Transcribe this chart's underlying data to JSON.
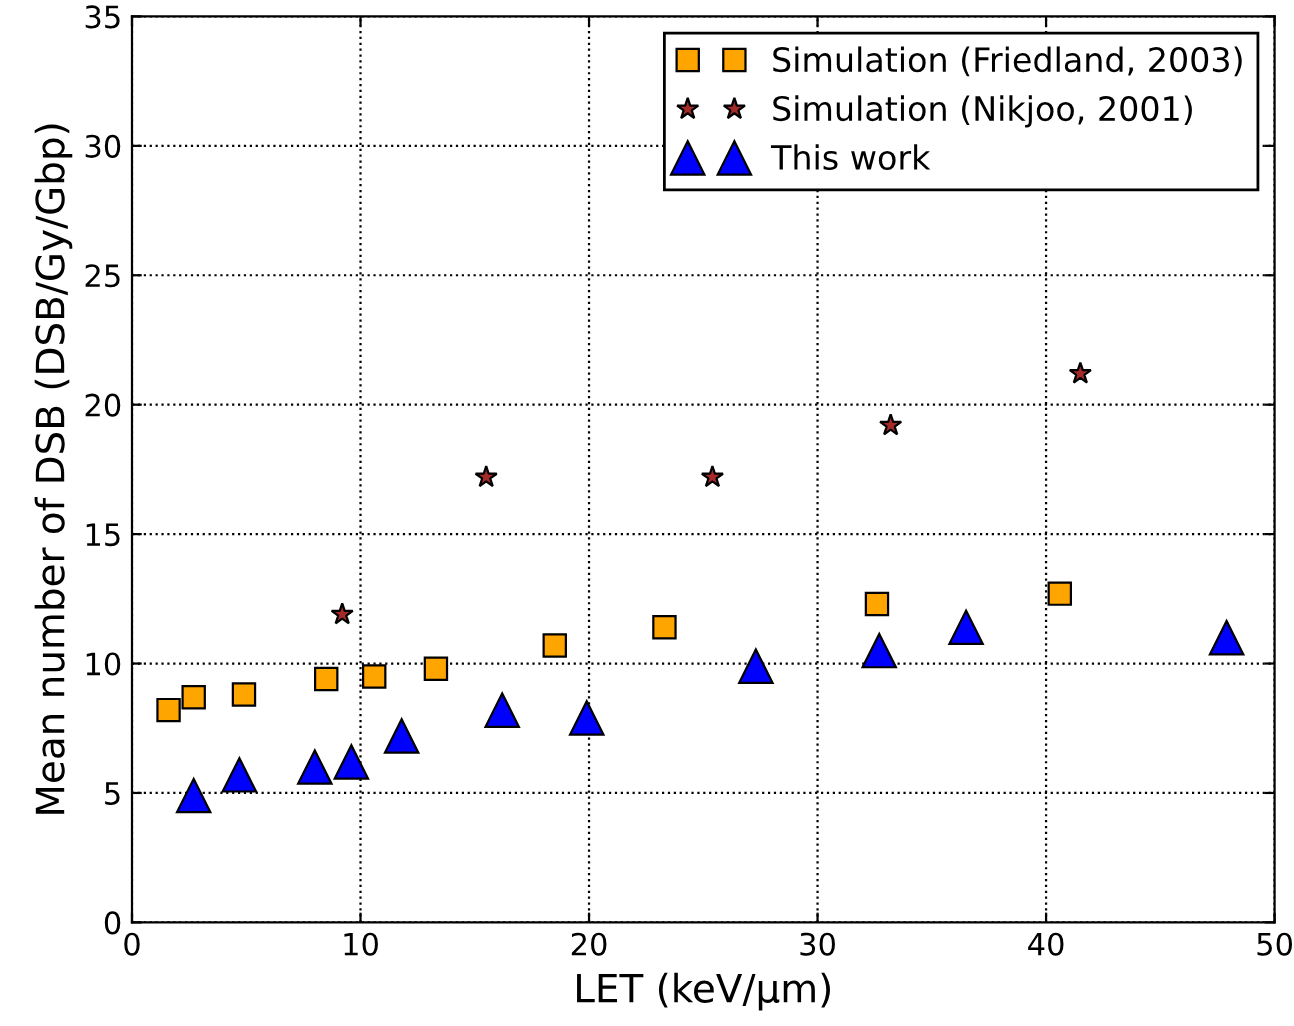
{
  "chart_data": {
    "type": "scatter",
    "xlabel": "LET (keV/μm)",
    "ylabel": "Mean number of DSB (DSB/Gy/Gbp)",
    "xlim": [
      0,
      50
    ],
    "ylim": [
      0,
      35
    ],
    "xticks": [
      0,
      10,
      20,
      30,
      40,
      50
    ],
    "yticks": [
      0,
      5,
      10,
      15,
      20,
      25,
      30,
      35
    ],
    "grid": true,
    "legend": "top right",
    "series": [
      {
        "name": "Simulation (Friedland, 2003)",
        "color": "#ffa500",
        "marker": "square",
        "x": [
          1.6,
          2.7,
          4.9,
          8.5,
          10.6,
          13.3,
          18.5,
          23.3,
          32.6,
          40.6
        ],
        "values": [
          8.2,
          8.7,
          8.8,
          9.4,
          9.5,
          9.8,
          10.7,
          11.4,
          12.3,
          12.7
        ]
      },
      {
        "name": "Simulation (Nikjoo, 2001)",
        "color": "#a52a2a",
        "marker": "star",
        "x": [
          9.2,
          15.5,
          25.4,
          33.2,
          41.5
        ],
        "values": [
          11.9,
          17.2,
          17.2,
          19.2,
          21.2
        ]
      },
      {
        "name": "This work",
        "color": "#0000ff",
        "marker": "triangle",
        "x": [
          2.7,
          4.7,
          8.0,
          9.6,
          11.8,
          16.2,
          19.9,
          27.3,
          32.7,
          36.5,
          47.9
        ],
        "values": [
          4.9,
          5.7,
          6.0,
          6.2,
          7.2,
          8.2,
          7.9,
          9.9,
          10.5,
          11.4,
          11.0
        ]
      }
    ]
  }
}
